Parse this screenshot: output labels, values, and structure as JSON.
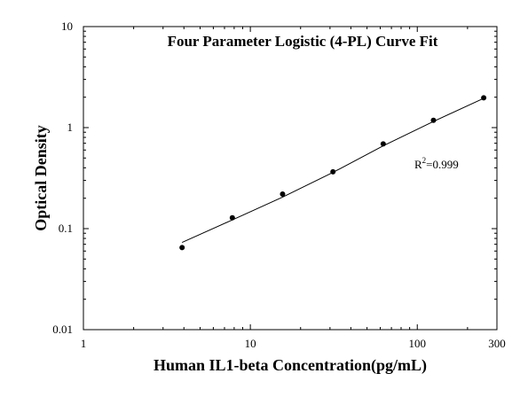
{
  "chart_data": {
    "type": "scatter",
    "title": "Four Parameter Logistic (4-PL) Curve Fit",
    "xlabel": "Human IL1-beta Concentration(pg/mL)",
    "ylabel": "Optical Density",
    "x_scale": "log",
    "y_scale": "log",
    "xlim": [
      1,
      300
    ],
    "ylim": [
      0.01,
      10
    ],
    "x_ticks": [
      1,
      10,
      100,
      300
    ],
    "x_tick_labels": [
      "1",
      "10",
      "100",
      "300"
    ],
    "y_ticks": [
      0.01,
      0.1,
      1,
      10
    ],
    "y_tick_labels": [
      "0.01",
      "0.1",
      "1",
      "10"
    ],
    "grid": false,
    "series": [
      {
        "x": [
          3.9,
          7.8,
          15.6,
          31.25,
          62.5,
          125,
          250
        ],
        "y": [
          0.065,
          0.128,
          0.22,
          0.365,
          0.69,
          1.18,
          1.97
        ]
      }
    ],
    "fit_curve": {
      "x": [
        3.9,
        7.8,
        15.6,
        31.25,
        62.5,
        125,
        250
      ],
      "y": [
        0.073,
        0.122,
        0.205,
        0.36,
        0.66,
        1.15,
        1.95
      ]
    },
    "annotation": {
      "r_symbol": "R",
      "superscript": "2",
      "value_text": "=0.999"
    }
  }
}
